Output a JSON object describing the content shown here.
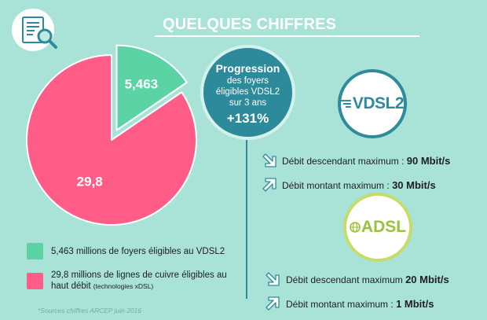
{
  "header": {
    "title": "QUELQUES CHIFFRES"
  },
  "icons": {
    "document": "document-search-icon",
    "arrow_down": "arrow-down-right-icon",
    "arrow_up": "arrow-up-right-icon"
  },
  "colors": {
    "background": "#a9e3d8",
    "vdsl_green": "#5cd3a4",
    "copper_pink": "#ff5c87",
    "accent_teal": "#2d8a9a",
    "adsl_green": "#9cc23a"
  },
  "chart_data": {
    "type": "pie",
    "values": [
      5.463,
      29.8
    ],
    "labels": [
      "5,463",
      "29,8"
    ],
    "colors": [
      "#5cd3a4",
      "#ff5c87"
    ],
    "exploded": [
      true,
      false
    ],
    "legend_position": "bottom",
    "legend": [
      {
        "text": "5,463 millions de foyers éligibles au VDSL2",
        "note": ""
      },
      {
        "text": "29,8 millions de lignes de cuivre éligibles au haut débit",
        "note": "(technologies xDSL)"
      }
    ]
  },
  "source": "*Sources chiffres ARCEP juin 2016",
  "progression": {
    "title": "Progression",
    "line1": "des foyers",
    "line2": "éligibles VDSL2",
    "line3": "sur 3 ans",
    "value": "+131%"
  },
  "vdsl": {
    "badge": "VDSL2",
    "down_label": "Débit descendant maximum :",
    "down_value": "90 Mbit/s",
    "up_label": "Débit montant maximum :",
    "up_value": "30 Mbit/s"
  },
  "adsl": {
    "badge": "ADSL",
    "down_label": "Débit descendant maximum",
    "down_value": "20 Mbit/s",
    "up_label": "Débit montant maximum :",
    "up_value": "1 Mbit/s"
  }
}
